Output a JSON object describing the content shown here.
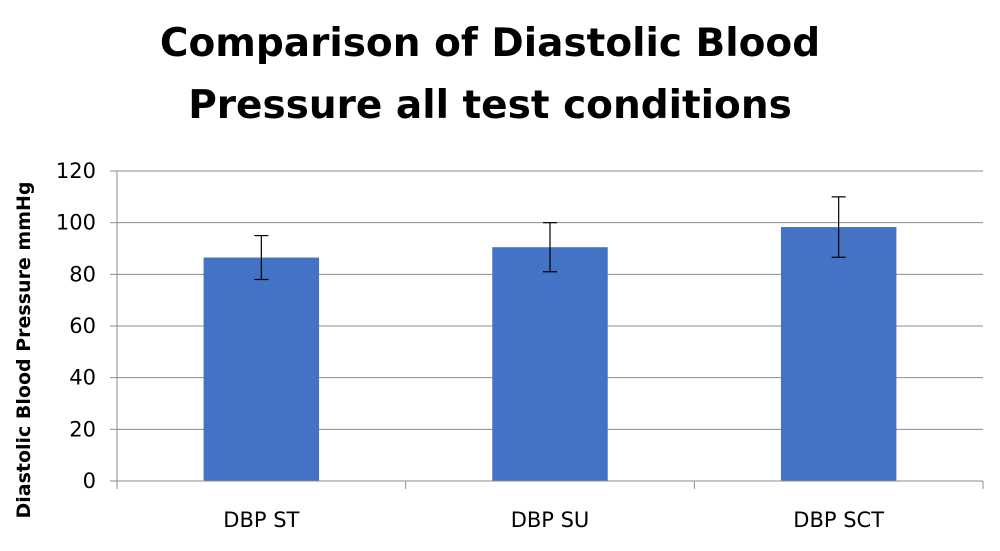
{
  "chart_data": {
    "type": "bar",
    "title_lines": [
      "Comparison of Diastolic Blood",
      "Pressure all test conditions"
    ],
    "xlabel": "",
    "ylabel": "Diastolic Blood Pressure mmHg",
    "categories": [
      "DBP ST",
      "DBP SU",
      "DBP SCT"
    ],
    "series": [
      {
        "values": [
          86.5,
          90.5,
          98.3
        ],
        "error": [
          8.5,
          9.5,
          11.7
        ]
      }
    ],
    "ylim": [
      0,
      120
    ],
    "yticks": [
      0,
      20,
      40,
      60,
      80,
      100,
      120
    ],
    "grid": true,
    "legend": "none",
    "colors": {
      "bar": "#4472C4",
      "grid": "#8c8c8c",
      "axis": "#8c8c8c",
      "error": "#000000"
    }
  }
}
